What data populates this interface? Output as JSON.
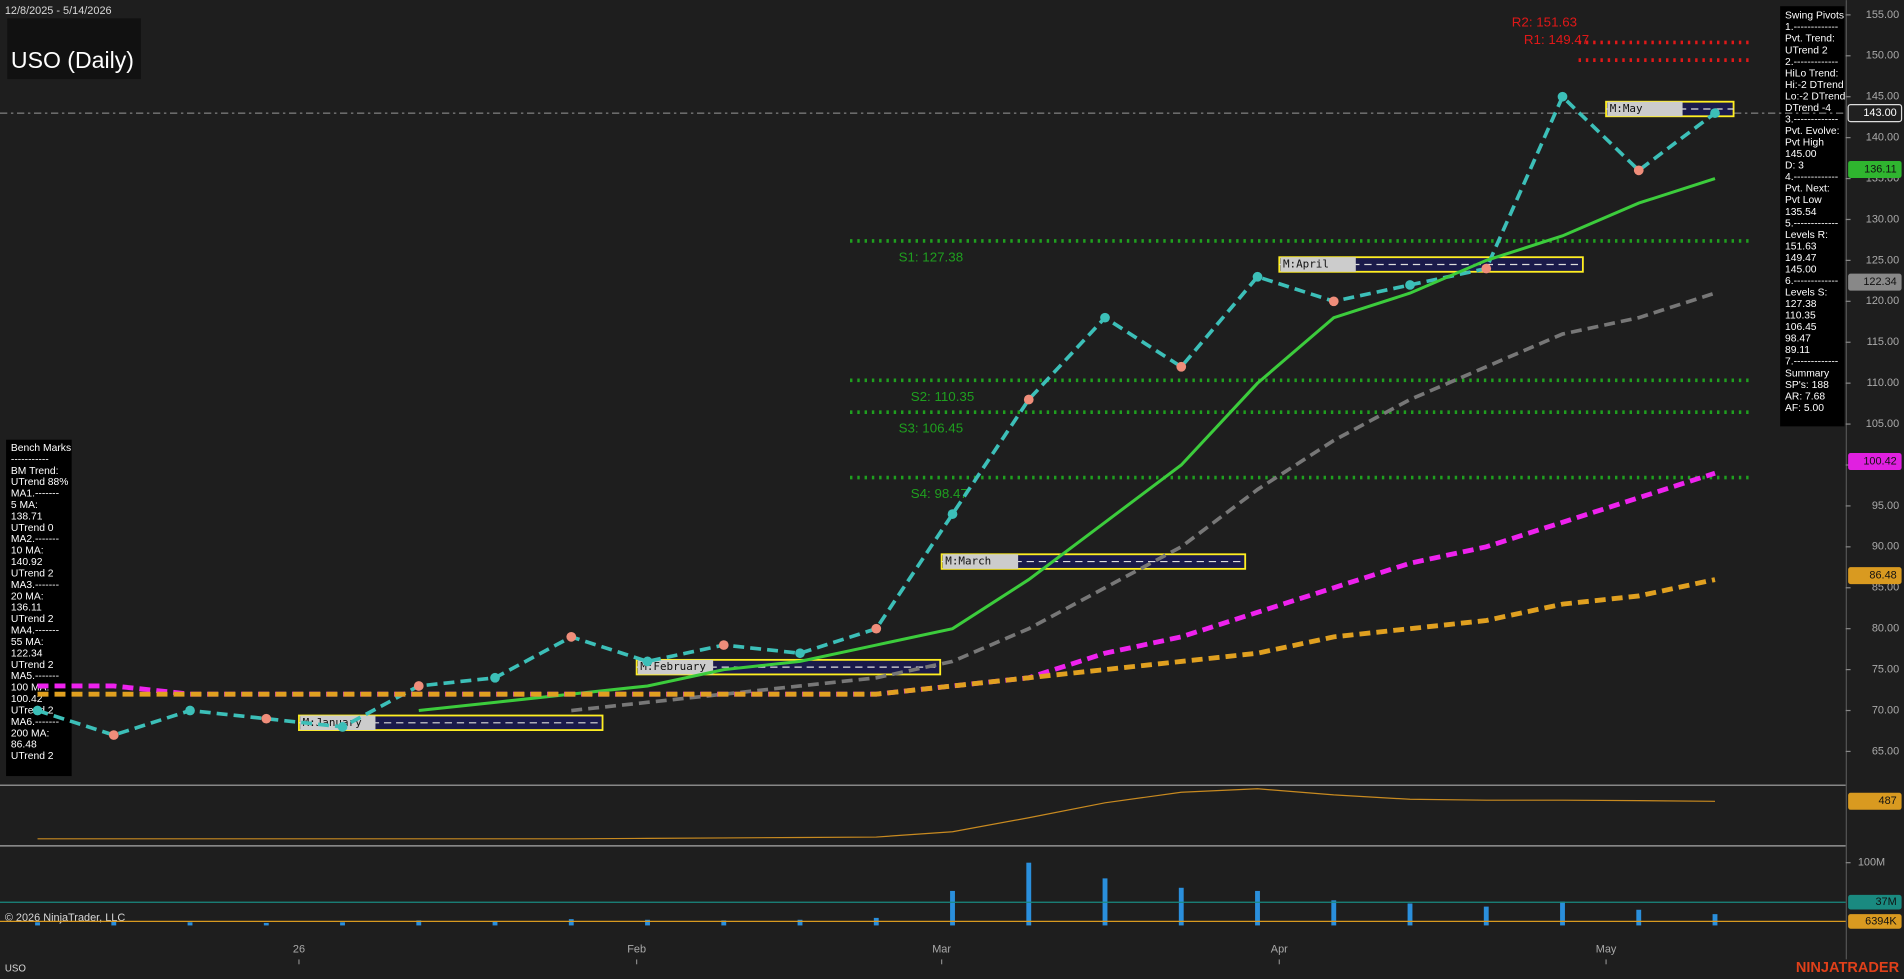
{
  "chart_data": {
    "type": "line",
    "date_range": "12/8/2025 - 5/14/2026",
    "title": "USO (Daily)",
    "copyright": "© 2026 NinjaTrader, LLC",
    "symbol": "USO",
    "brand": "NINJATRADER",
    "x": [
      0,
      7,
      14,
      21,
      28,
      35,
      42,
      49,
      56,
      63,
      70,
      77,
      84,
      91,
      98,
      105,
      112,
      119,
      126,
      133,
      140,
      147,
      154
    ],
    "xlim": [
      -3,
      166
    ],
    "xticks": [
      {
        "value": 24,
        "label": "26"
      },
      {
        "value": 55,
        "label": "Feb"
      },
      {
        "value": 83,
        "label": "Mar"
      },
      {
        "value": 114,
        "label": "Apr"
      },
      {
        "value": 144,
        "label": "May"
      }
    ],
    "ylim": [
      61.1,
      156.8
    ],
    "yticks": [
      {
        "value": 65,
        "label": "65.00"
      },
      {
        "value": 70,
        "label": "70.00"
      },
      {
        "value": 75,
        "label": "75.00"
      },
      {
        "value": 80,
        "label": "80.00"
      },
      {
        "value": 85,
        "label": "85.00"
      },
      {
        "value": 90,
        "label": "90.00"
      },
      {
        "value": 95,
        "label": "95.00"
      },
      {
        "value": 100,
        "label": "100.00"
      },
      {
        "value": 105,
        "label": "105.00"
      },
      {
        "value": 110,
        "label": "110.00"
      },
      {
        "value": 115,
        "label": "115.00"
      },
      {
        "value": 120,
        "label": "120.00"
      },
      {
        "value": 125,
        "label": "125.00"
      },
      {
        "value": 130,
        "label": "130.00"
      },
      {
        "value": 135,
        "label": "135.00"
      },
      {
        "value": 140,
        "label": "140.00"
      },
      {
        "value": 145,
        "label": "145.00"
      },
      {
        "value": 150,
        "label": "150.00"
      },
      {
        "value": 155,
        "label": "155.00"
      }
    ],
    "series": [
      {
        "name": "Price",
        "color": "#3cbfb8",
        "style": "dashed",
        "width": 3,
        "values": [
          70,
          67,
          70,
          69,
          68,
          73,
          74,
          79,
          76,
          78,
          77,
          80,
          94,
          108,
          118,
          112,
          123,
          120,
          122,
          124,
          145,
          136,
          143
        ]
      },
      {
        "name": "20 MA",
        "color": "#3ccc3c",
        "style": "solid",
        "width": 2.5,
        "values": [
          null,
          null,
          null,
          null,
          null,
          70,
          71,
          72,
          73,
          75,
          76,
          78,
          80,
          86,
          93,
          100,
          110,
          118,
          121,
          125,
          128,
          132,
          135
        ]
      },
      {
        "name": "55 MA",
        "color": "#777777",
        "style": "dashed",
        "width": 3,
        "values": [
          null,
          null,
          null,
          null,
          null,
          null,
          null,
          70,
          71,
          72,
          73,
          74,
          76,
          80,
          85,
          90,
          97,
          103,
          108,
          112,
          116,
          118,
          121
        ]
      },
      {
        "name": "100 MA",
        "color": "#ee22ee",
        "style": "dashed",
        "width": 4,
        "values": [
          73,
          73,
          72,
          72,
          72,
          72,
          72,
          72,
          72,
          72,
          72,
          72,
          73,
          74,
          77,
          79,
          82,
          85,
          88,
          90,
          93,
          96,
          99
        ]
      },
      {
        "name": "200 MA",
        "color": "#e0a020",
        "style": "dashed",
        "width": 4,
        "values": [
          72,
          72,
          72,
          72,
          72,
          72,
          72,
          72,
          72,
          72,
          72,
          72,
          73,
          74,
          75,
          76,
          77,
          79,
          80,
          81,
          83,
          84,
          86
        ]
      }
    ],
    "levels": [
      {
        "label": "R2: 151.63",
        "value": 151.63,
        "color": "#e01818"
      },
      {
        "label": "R1: 149.47",
        "value": 149.47,
        "color": "#e01818"
      },
      {
        "label": "S1: 127.38",
        "value": 127.38,
        "color": "#1fa01f"
      },
      {
        "label": "S2: 110.35",
        "value": 110.35,
        "color": "#1fa01f"
      },
      {
        "label": "S3: 106.45",
        "value": 106.45,
        "color": "#1fa01f"
      },
      {
        "label": "S4: 98.47",
        "value": 98.47,
        "color": "#1fa01f"
      }
    ],
    "month_boxes": [
      {
        "label": "M:January",
        "value": 68.5
      },
      {
        "label": "M:February",
        "value": 75.3
      },
      {
        "label": "M:March",
        "value": 88.2
      },
      {
        "label": "M:April",
        "value": 124.5
      },
      {
        "label": "M:May",
        "value": 143.5
      }
    ],
    "badges": [
      {
        "value": 143,
        "label": "143.00",
        "color": "#202020"
      },
      {
        "value": 136.11,
        "label": "136.11",
        "color": "#2fb52f"
      },
      {
        "value": 122.34,
        "label": "122.34",
        "color": "#888888"
      },
      {
        "value": 100.42,
        "label": "100.42",
        "color": "#e020e0"
      },
      {
        "value": 86.48,
        "label": "86.48",
        "color": "#d99a20"
      }
    ],
    "swing_pivots": [
      "Swing Pivots",
      "1.-------------",
      "Pvt. Trend:",
      "UTrend 2",
      "2.-------------",
      "HiLo Trend:",
      "Hi:-2 DTrend",
      "Lo:-2 DTrend",
      "DTrend -4",
      "3.-------------",
      "Pvt. Evolve:",
      "Pvt High",
      "145.00",
      "D: 3",
      "4.-------------",
      "Pvt. Next:",
      "Pvt Low",
      "135.54",
      "5.-------------",
      "Levels R:",
      "151.63",
      "149.47",
      "145.00",
      "6.-------------",
      "Levels S:",
      "127.38",
      "110.35",
      "106.45",
      "98.47",
      "89.11",
      "7.-------------",
      "Summary",
      "SP's: 188",
      "AR: 7.68",
      "AF: 5.00"
    ],
    "bench_marks": [
      "Bench Marks",
      "-----------",
      "BM Trend:",
      "UTrend 88%",
      "MA1.-------",
      "5 MA:",
      "138.71",
      "UTrend 0",
      "MA2.-------",
      "10 MA:",
      "140.92",
      "UTrend 2",
      "MA3.-------",
      "20 MA:",
      "136.11",
      "UTrend 2",
      "MA4.-------",
      "55 MA:",
      "122.34",
      "UTrend 2",
      "MA5.-------",
      "100 MA:",
      "100.42",
      "UTrend 2",
      "MA6.-------",
      "200 MA:",
      "86.48",
      "UTrend 2"
    ],
    "indicator": {
      "color": "#c88a20",
      "ylim": [
        0,
        650
      ],
      "values": [
        60,
        60,
        60,
        60,
        60,
        60,
        60,
        60,
        65,
        70,
        75,
        80,
        140,
        300,
        470,
        590,
        630,
        560,
        510,
        500,
        500,
        495,
        487
      ],
      "badge": 487
    },
    "volume": {
      "color": "#2a8fdc",
      "avg_color": "#c88a20",
      "ylim": [
        0,
        120
      ],
      "yticks": [
        {
          "value": 100,
          "label": "100M"
        }
      ],
      "values": [
        5,
        6,
        5,
        4,
        5,
        8,
        7,
        10,
        9,
        8,
        9,
        12,
        55,
        100,
        75,
        60,
        55,
        40,
        35,
        30,
        38,
        25,
        18
      ],
      "badges": [
        {
          "value": 37,
          "label": "37M",
          "color": "#1a8a80"
        },
        {
          "value": 6.394,
          "label": "6394K",
          "color": "#d99a20"
        }
      ]
    }
  }
}
